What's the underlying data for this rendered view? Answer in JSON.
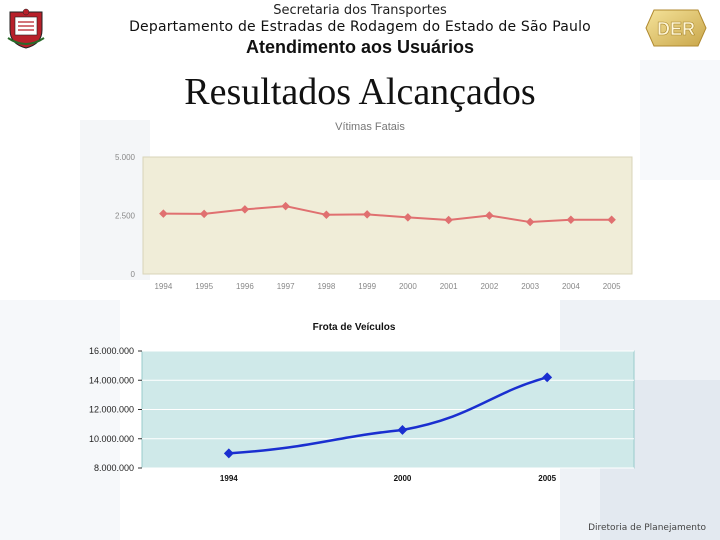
{
  "header": {
    "line1": "Secretaria dos Transportes",
    "line2": "Departamento de Estradas de Rodagem do Estado de São Paulo",
    "line3": "Atendimento aos Usuários",
    "logo_left": "sao-paulo-coat-of-arms",
    "logo_right_text": "DER"
  },
  "title": "Resultados Alcançados",
  "footer": "Diretoria de Planejamento",
  "colors": {
    "chart1_plot_bg": "#f0edd8",
    "chart1_line": "#e07070",
    "chart2_plot_bg": "#cfe9e9",
    "chart2_line": "#1a2fd0"
  },
  "chart_data": [
    {
      "type": "line",
      "title": "Vítimas Fatais",
      "categories": [
        "1994",
        "1995",
        "1996",
        "1997",
        "1998",
        "1999",
        "2000",
        "2001",
        "2002",
        "2003",
        "2004",
        "2005"
      ],
      "values": [
        2580,
        2570,
        2760,
        2900,
        2530,
        2550,
        2420,
        2310,
        2500,
        2220,
        2320,
        2320
      ],
      "ylim": [
        0,
        5000
      ],
      "yticks": [
        "5.000",
        "2.500",
        "0"
      ],
      "grid": false
    },
    {
      "type": "line",
      "title": "Frota de Veículos",
      "x": [
        "1994",
        "2000",
        "2005"
      ],
      "values": [
        9000000,
        10600000,
        14200000
      ],
      "ylim": [
        8000000,
        16000000
      ],
      "yticks": [
        "16.000.000",
        "14.000.000",
        "12.000.000",
        "10.000.000",
        "8.000.000"
      ],
      "grid": true
    }
  ]
}
